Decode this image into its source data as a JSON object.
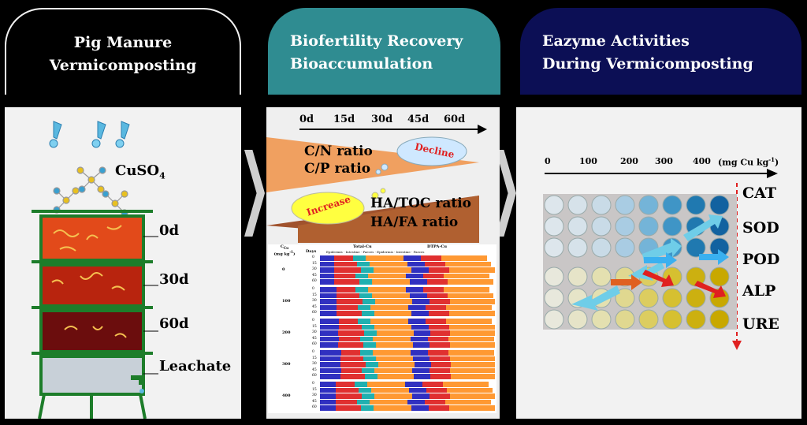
{
  "panels": {
    "left": {
      "header_lines": [
        "Pig Manure",
        "Vermicomposting"
      ],
      "chemical": "CuSO",
      "chemical_sub": "4",
      "stages": [
        "0d",
        "30d",
        "60d"
      ],
      "leachate": "Leachate"
    },
    "middle": {
      "header_lines": [
        "Biofertility Recovery",
        "Bioaccumulation"
      ],
      "timeline": [
        "0d",
        "15d",
        "30d",
        "45d",
        "60d"
      ],
      "decline_ratios": [
        "C/N ratio",
        "C/P ratio"
      ],
      "decline_label": "Decline",
      "increase_label": "Increase",
      "increase_ratios": [
        "HA/TOC ratio",
        "HA/FA ratio"
      ],
      "table": {
        "col_cu": "C",
        "col_cu_sub": "Cu",
        "col_cu_unit": "(mg kg",
        "col_cu_unit_sup": "-1",
        "col_cu_unit_end": ")",
        "col_days": "Days",
        "group1": "Total-Cu",
        "group2": "DTPA-Cu",
        "legend": [
          "Epidermis",
          "Intestine",
          "Faeces",
          "Epidermis",
          "Intestine",
          "Faeces"
        ],
        "concentrations": [
          "0",
          "100",
          "200",
          "300",
          "400"
        ],
        "days": [
          "0",
          "15",
          "30",
          "45",
          "60"
        ]
      }
    },
    "right": {
      "header_lines": [
        "Eazyme Activities",
        "During Vermicomposting"
      ],
      "axis_ticks": [
        "0",
        "100",
        "200",
        "300",
        "400"
      ],
      "axis_unit": "(mg Cu kg",
      "axis_unit_sup": "-1",
      "axis_unit_end": ")",
      "enzymes": [
        "CAT",
        "SOD",
        "POD",
        "ALP",
        "URE"
      ]
    }
  },
  "colors": {
    "header_left": "#000000",
    "header_middle": "#2f8c91",
    "header_right": "#0c0f55",
    "panel_bg": "#f2f2f2",
    "bar_epidermis": "#3030c0",
    "bar_intestine": "#e03030",
    "bar_faeces": "#ff9933",
    "bar_teal": "#20b0b0"
  }
}
